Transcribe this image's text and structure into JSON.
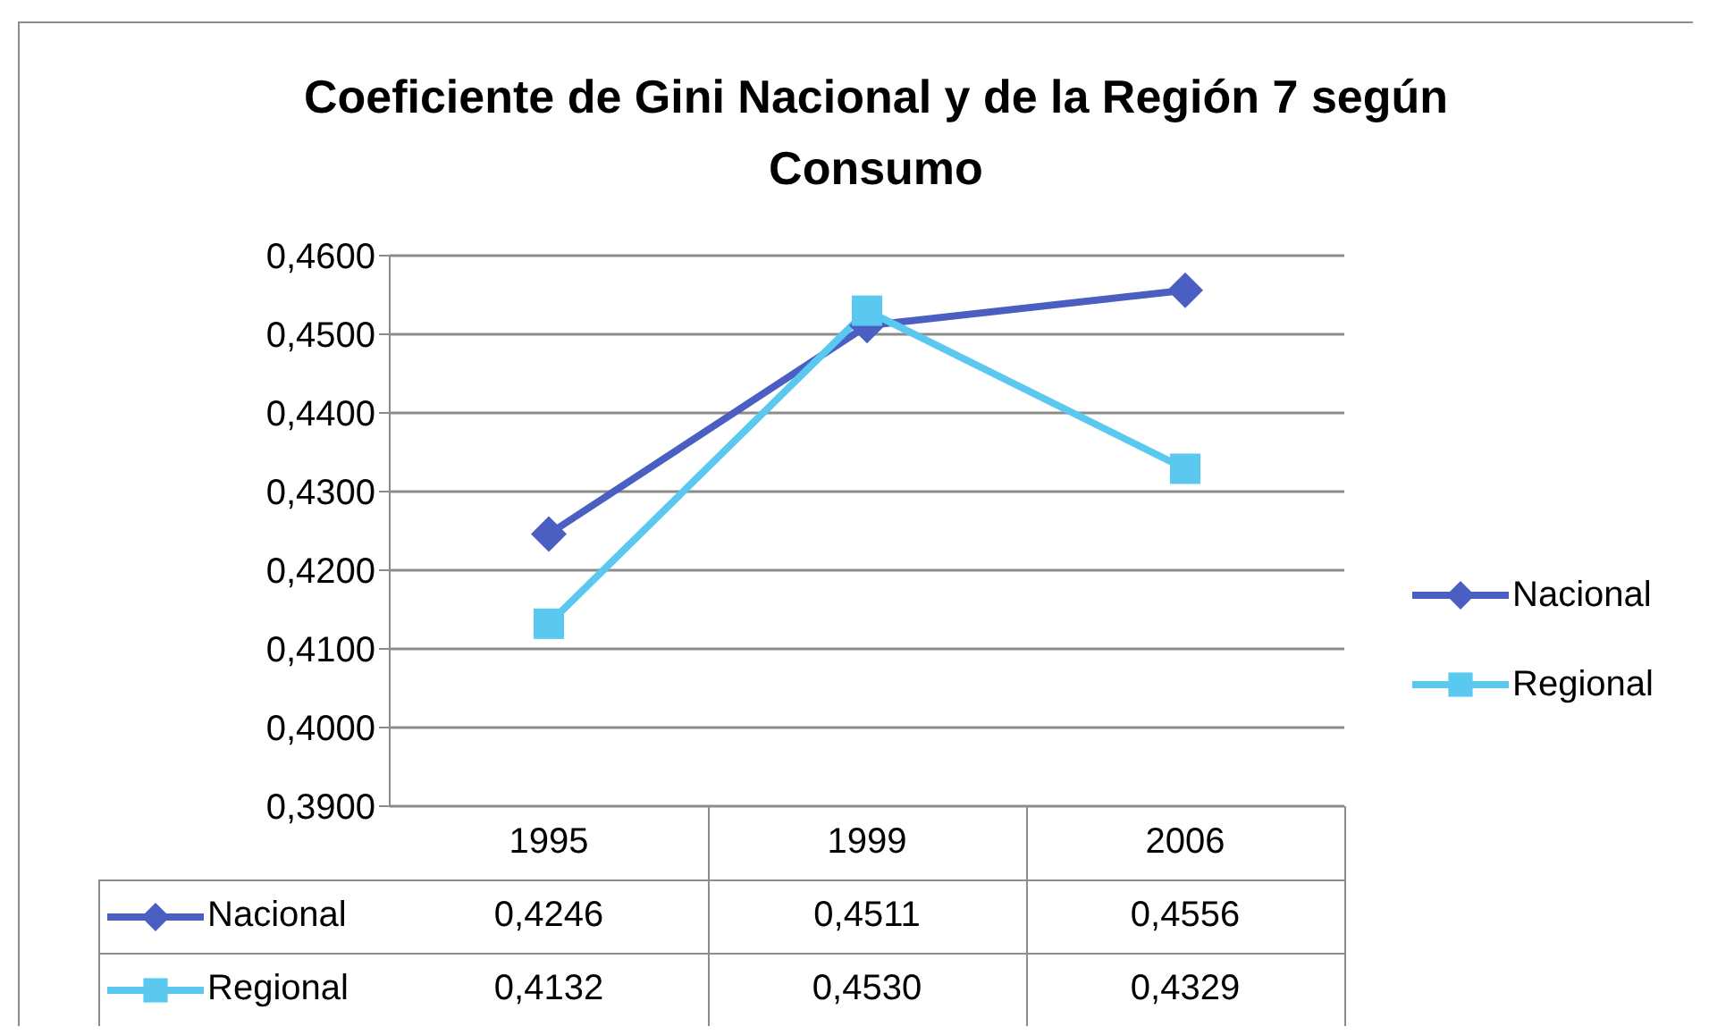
{
  "chart_data": {
    "type": "line",
    "title": "Coeficiente de Gini Nacional y de la Región 7 según Consumo",
    "categories": [
      "1995",
      "1999",
      "2006"
    ],
    "series": [
      {
        "name": "Nacional",
        "color": "#4a5fc1",
        "marker": "diamond",
        "values": [
          0.4246,
          0.4511,
          0.4556
        ],
        "value_labels": [
          "0,4246",
          "0,4511",
          "0,4556"
        ]
      },
      {
        "name": "Regional",
        "color": "#5bc8ef",
        "marker": "square",
        "values": [
          0.4132,
          0.453,
          0.4329
        ],
        "value_labels": [
          "0,4132",
          "0,4530",
          "0,4329"
        ]
      }
    ],
    "ylim": [
      0.39,
      0.46
    ],
    "yticks": [
      {
        "value": 0.39,
        "label": "0,3900"
      },
      {
        "value": 0.4,
        "label": "0,4000"
      },
      {
        "value": 0.41,
        "label": "0,4100"
      },
      {
        "value": 0.42,
        "label": "0,4200"
      },
      {
        "value": 0.43,
        "label": "0,4300"
      },
      {
        "value": 0.44,
        "label": "0,4400"
      },
      {
        "value": 0.45,
        "label": "0,4500"
      },
      {
        "value": 0.46,
        "label": "0,4600"
      }
    ],
    "grid": "y",
    "legend": "right"
  }
}
